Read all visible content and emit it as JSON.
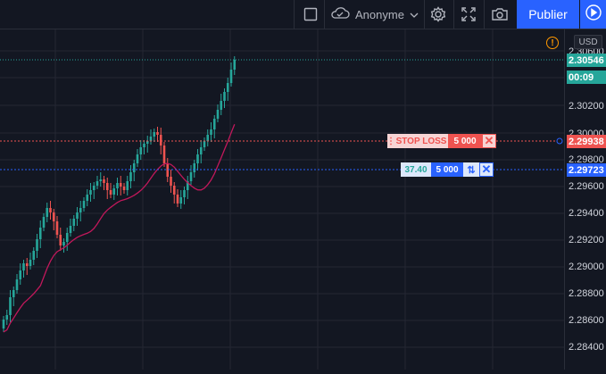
{
  "topbar": {
    "account_label": "Anonyme",
    "publish_label": "Publier"
  },
  "axis": {
    "currency": "USD",
    "ticks": [
      "2.30600",
      "2.30200",
      "2.30000",
      "2.29800",
      "2.29600",
      "2.29400",
      "2.29200",
      "2.29000",
      "2.28800",
      "2.28600",
      "2.28400"
    ],
    "tick_partial_2": "2",
    "last_price": "2.30546",
    "countdown": "00:09",
    "stop_loss_price": "2.29938",
    "position_price": "2.29723"
  },
  "orders": {
    "stop_loss": {
      "label": "STOP LOSS",
      "qty": "5 000"
    },
    "position": {
      "pnl": "37.40",
      "qty": "5 000"
    }
  },
  "colors": {
    "bull": "#26a69a",
    "bear": "#ef5350",
    "ma": "#c2185b",
    "accent": "#2962ff"
  },
  "icons": [
    "square-icon",
    "cloud-icon",
    "chevron-down-icon",
    "gear-icon",
    "fullscreen-icon",
    "camera-icon",
    "play-icon",
    "warning-icon",
    "drag-handle-icon",
    "close-icon",
    "reverse-icon"
  ]
}
